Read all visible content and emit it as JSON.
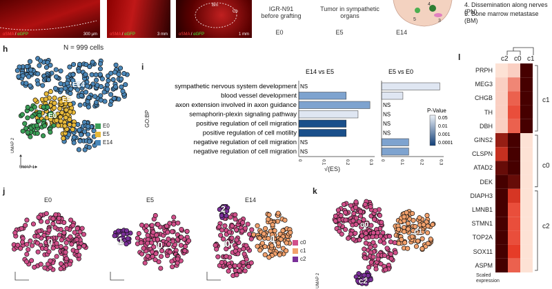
{
  "top_row": {
    "panel1": {
      "stain_a": "αSMA",
      "stain_b": "αGFP",
      "scale": "300 µm"
    },
    "panel2": {
      "stain_a": "αSMA",
      "stain_b": "αGFP",
      "scale": "3 mm"
    },
    "panel3": {
      "stain_a": "αSMA",
      "stain_b": "αGFP",
      "scale": "1 mm",
      "label_bm": "Bm",
      "label_cb": "Cb"
    },
    "stage_e0_text": "IGR-N91\nbefore grafting",
    "stage_e5_text": "Tumor in sympathetic\norgans",
    "stages": [
      "E0",
      "E5",
      "E14"
    ],
    "legend_line4": "4. Dissemination along nerves (PN)",
    "legend_line5": "5. Bone marrow metastase (BM)"
  },
  "panel_h": {
    "letter": "h",
    "title": "N = 999 cells",
    "cluster_labels": [
      "E14",
      "E5",
      "E0"
    ],
    "legend": [
      {
        "label": "E0",
        "color": "#3b9e57"
      },
      {
        "label": "E5",
        "color": "#e8b93a"
      },
      {
        "label": "E14",
        "color": "#4b87b8"
      }
    ],
    "axis_x": "UMAP 1",
    "axis_y": "UMAP 2"
  },
  "panel_i": {
    "letter": "i",
    "ylabel": "GO:BP",
    "xlabel": "√(ES)",
    "legend_title": "P-Value",
    "legend_ticks": [
      "0.05",
      "0.01",
      "0.001",
      "0.0001"
    ],
    "chart_data": {
      "type": "bar",
      "categories": [
        "sympathetic nervous system development",
        "blood vessel development",
        "axon extension involved in axon guidance",
        "semaphorin-plexin signaling pathway",
        "positive regulation of cell migration",
        "positive regulation of cell motility",
        "negative regulation of cell migration",
        "negative regulation of cell migration"
      ],
      "series": [
        {
          "name": "E14 vs E5",
          "values": [
            0,
            0.2,
            0.3,
            0.25,
            0.2,
            0.2,
            0,
            0
          ],
          "pvalues": [
            null,
            0.01,
            0.01,
            0.05,
            0.0001,
            0.0001,
            null,
            null
          ],
          "labels": [
            "NS",
            "",
            "",
            "",
            "",
            "",
            "NS",
            "NS"
          ]
        },
        {
          "name": "E5 vs E0",
          "values": [
            0.3,
            0.11,
            0,
            0,
            0,
            0,
            0.14,
            0.14
          ],
          "pvalues": [
            0.05,
            0.05,
            null,
            null,
            null,
            null,
            0.01,
            0.01
          ],
          "labels": [
            "",
            "",
            "NS",
            "NS",
            "NS",
            "NS",
            "",
            ""
          ]
        }
      ],
      "xticks_e14": [
        "0",
        "0.1",
        "0.2",
        "0.3"
      ],
      "xticks_e5": [
        "0",
        "0.1",
        "0.2",
        "0.3"
      ],
      "xlim": [
        0,
        0.32
      ]
    }
  },
  "panel_j": {
    "letter": "j",
    "titles": [
      "E0",
      "E5",
      "E14"
    ],
    "labels_e0": [
      "0"
    ],
    "labels_e5": [
      "1",
      "0"
    ],
    "labels_e14": [
      "2",
      "0",
      "1"
    ],
    "legend": [
      {
        "label": "c0",
        "color": "#d14f8a"
      },
      {
        "label": "c1",
        "color": "#f2a16c"
      },
      {
        "label": "c2",
        "color": "#7a2f99"
      }
    ]
  },
  "panel_k": {
    "letter": "k",
    "labels": [
      "c0",
      "c1",
      "c2"
    ],
    "axis_y": "UMAP 2"
  },
  "panel_l": {
    "letter": "l",
    "columns": [
      "c2",
      "c0",
      "c1"
    ],
    "genes": [
      "PRPH",
      "MEG3",
      "CHGB",
      "TH",
      "DBH",
      "GINS2",
      "CLSPN",
      "ATAD2",
      "DEK",
      "DIAPH3",
      "LMNB1",
      "STMN1",
      "TOP2A",
      "SOX11",
      "ASPM"
    ],
    "groups": [
      "c1",
      "c0",
      "c2"
    ],
    "legend_title": "Scaled\nexpression",
    "chart_data": {
      "type": "heatmap",
      "rows": [
        "PRPH",
        "MEG3",
        "CHGB",
        "TH",
        "DBH",
        "GINS2",
        "CLSPN",
        "ATAD2",
        "DEK",
        "DIAPH3",
        "LMNB1",
        "STMN1",
        "TOP2A",
        "SOX11",
        "ASPM"
      ],
      "cols": [
        "c2",
        "c0",
        "c1"
      ],
      "values": [
        [
          0.05,
          0.1,
          1.0
        ],
        [
          0.1,
          0.3,
          1.0
        ],
        [
          0.1,
          0.4,
          1.0
        ],
        [
          0.1,
          0.45,
          1.0
        ],
        [
          0.1,
          0.4,
          1.0
        ],
        [
          0.75,
          1.0,
          0.05
        ],
        [
          0.6,
          1.0,
          0.05
        ],
        [
          0.9,
          1.0,
          0.05
        ],
        [
          1.0,
          0.9,
          0.05
        ],
        [
          1.0,
          0.55,
          0.05
        ],
        [
          1.0,
          0.45,
          0.05
        ],
        [
          1.0,
          0.45,
          0.05
        ],
        [
          1.0,
          0.45,
          0.05
        ],
        [
          1.0,
          0.5,
          0.05
        ],
        [
          1.0,
          0.4,
          0.05
        ]
      ]
    }
  }
}
